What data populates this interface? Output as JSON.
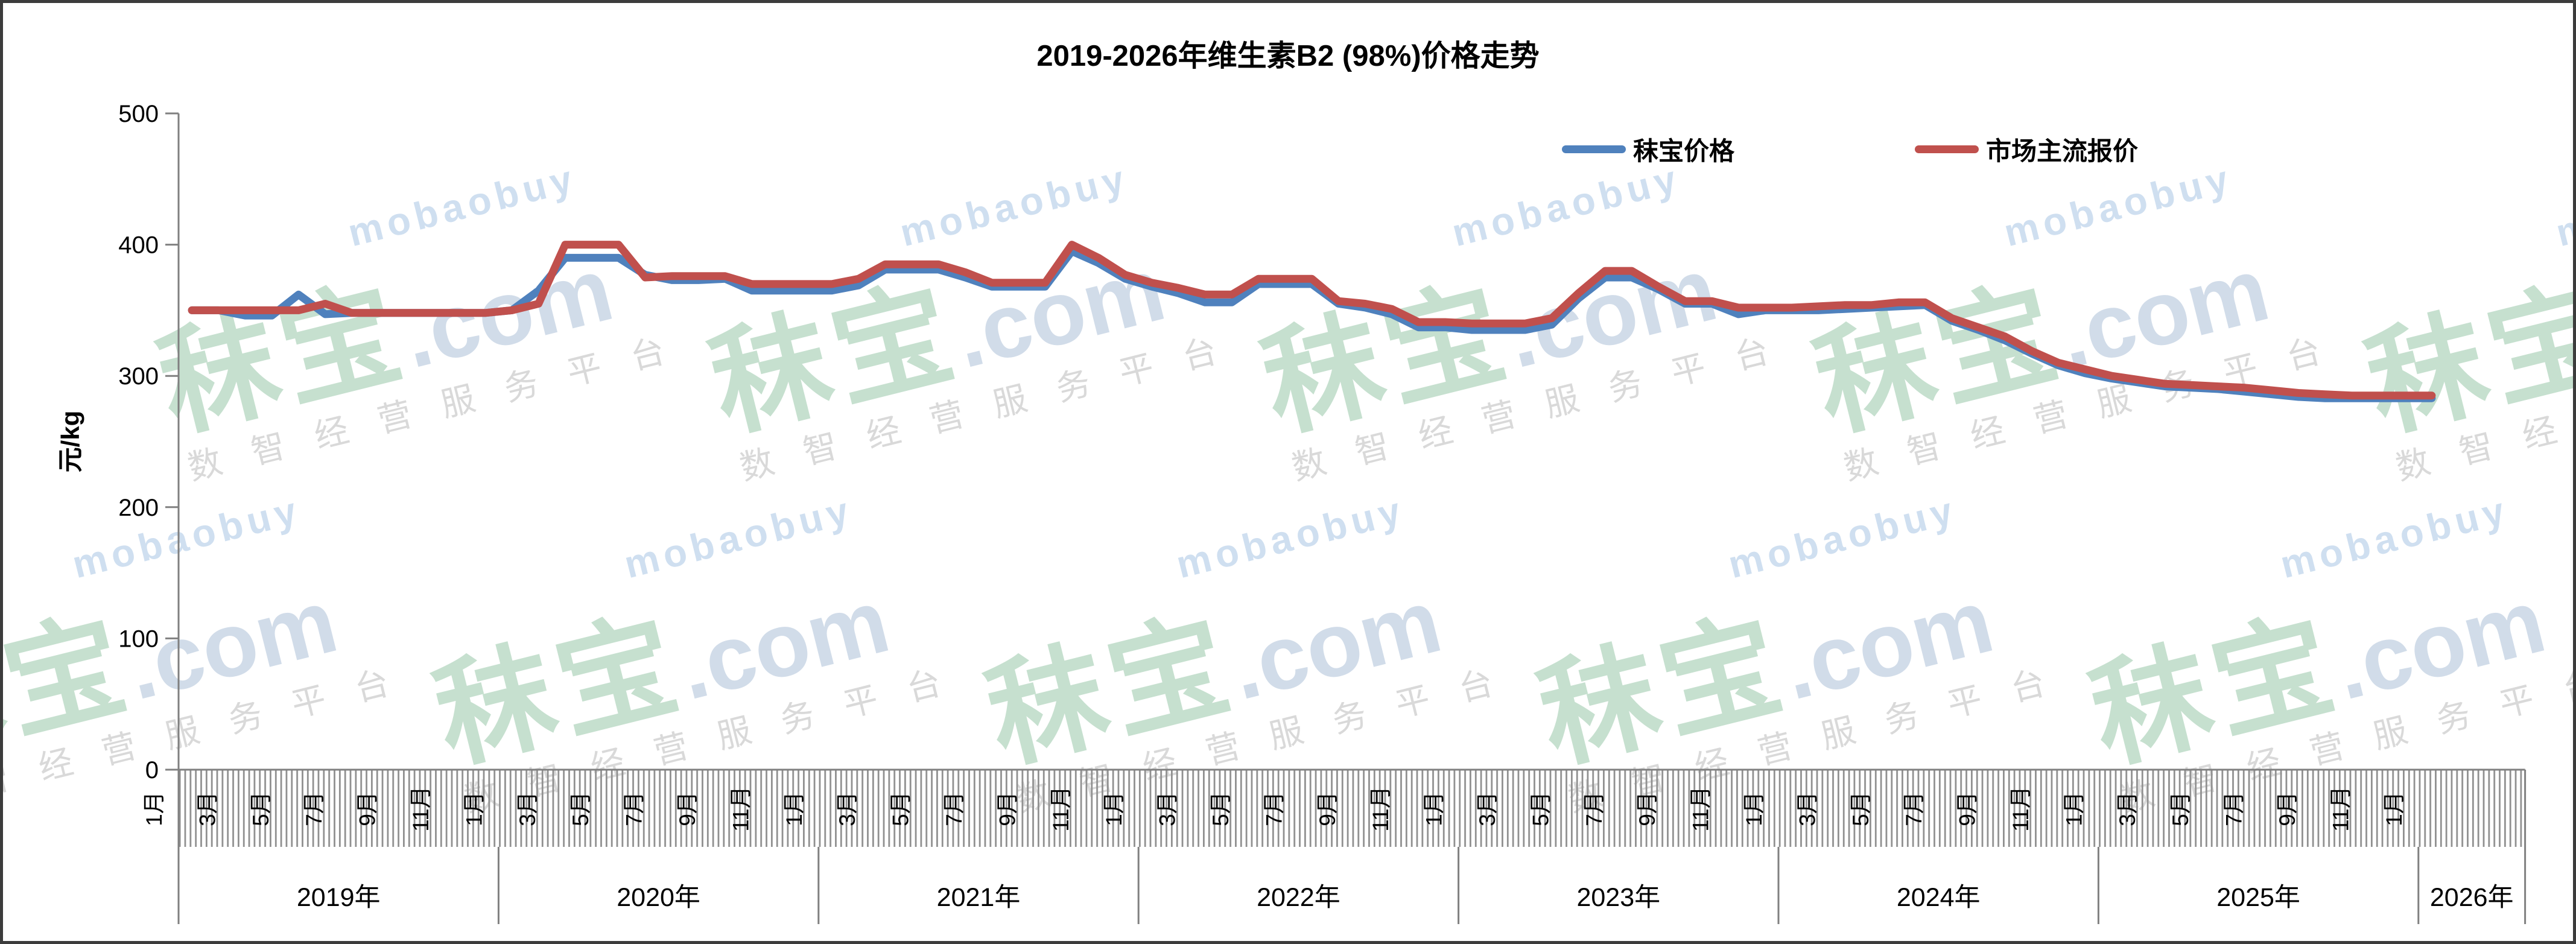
{
  "title": "2019-2026年维生素B2 (98%)价格走势",
  "y_axis": {
    "label": "元/kg",
    "ticks": [
      0,
      100,
      200,
      300,
      400,
      500
    ],
    "min": 0,
    "max": 500
  },
  "x_axis": {
    "years": [
      {
        "label": "2019年",
        "n_months": 12,
        "month_labels": [
          "1月",
          "3月",
          "5月",
          "7月",
          "9月",
          "11月"
        ]
      },
      {
        "label": "2020年",
        "n_months": 12,
        "month_labels": [
          "1月",
          "3月",
          "5月",
          "7月",
          "9月",
          "11月"
        ]
      },
      {
        "label": "2021年",
        "n_months": 12,
        "month_labels": [
          "1月",
          "3月",
          "5月",
          "7月",
          "9月",
          "11月"
        ]
      },
      {
        "label": "2022年",
        "n_months": 12,
        "month_labels": [
          "1月",
          "3月",
          "5月",
          "7月",
          "9月",
          "11月"
        ]
      },
      {
        "label": "2023年",
        "n_months": 12,
        "month_labels": [
          "1月",
          "3月",
          "5月",
          "7月",
          "9月",
          "11月"
        ]
      },
      {
        "label": "2024年",
        "n_months": 12,
        "month_labels": [
          "1月",
          "3月",
          "5月",
          "7月",
          "9月",
          "11月"
        ]
      },
      {
        "label": "2025年",
        "n_months": 12,
        "month_labels": [
          "1月",
          "3月",
          "5月",
          "7月",
          "9月",
          "11月"
        ]
      },
      {
        "label": "2026年",
        "n_months": 4,
        "month_labels": [
          "1月"
        ]
      }
    ]
  },
  "legend": {
    "items": [
      {
        "label": "秣宝价格",
        "color": "#4F81BD"
      },
      {
        "label": "市场主流报价",
        "color": "#C0504D"
      }
    ]
  },
  "watermark": {
    "brand": "秣宝",
    "suffix": ".com",
    "romanized": "mobaobuy",
    "tagline": "数智经营服务平台",
    "brand_color": "#98c6a8",
    "suffix_color": "#a3b9d4",
    "tagline_color": "#b9b9b9"
  },
  "colors": {
    "blue_series": "#4F81BD",
    "red_series": "#C0504D",
    "axis": "#808080",
    "stripe": "#909090",
    "text": "#000000"
  },
  "chart_data": {
    "type": "line",
    "title": "2019-2026年维生素B2 (98%)价格走势",
    "xlabel": "",
    "ylabel": "元/kg",
    "ylim": [
      0,
      500
    ],
    "grid": false,
    "legend_position": "top-right",
    "frequency": "monthly",
    "x_start": "2019-01",
    "x_end": "2026-01",
    "categories": [
      "2019-01",
      "2019-02",
      "2019-03",
      "2019-04",
      "2019-05",
      "2019-06",
      "2019-07",
      "2019-08",
      "2019-09",
      "2019-10",
      "2019-11",
      "2019-12",
      "2020-01",
      "2020-02",
      "2020-03",
      "2020-04",
      "2020-05",
      "2020-06",
      "2020-07",
      "2020-08",
      "2020-09",
      "2020-10",
      "2020-11",
      "2020-12",
      "2021-01",
      "2021-02",
      "2021-03",
      "2021-04",
      "2021-05",
      "2021-06",
      "2021-07",
      "2021-08",
      "2021-09",
      "2021-10",
      "2021-11",
      "2021-12",
      "2022-01",
      "2022-02",
      "2022-03",
      "2022-04",
      "2022-05",
      "2022-06",
      "2022-07",
      "2022-08",
      "2022-09",
      "2022-10",
      "2022-11",
      "2022-12",
      "2023-01",
      "2023-02",
      "2023-03",
      "2023-04",
      "2023-05",
      "2023-06",
      "2023-07",
      "2023-08",
      "2023-09",
      "2023-10",
      "2023-11",
      "2023-12",
      "2024-01",
      "2024-02",
      "2024-03",
      "2024-04",
      "2024-05",
      "2024-06",
      "2024-07",
      "2024-08",
      "2024-09",
      "2024-10",
      "2024-11",
      "2024-12",
      "2025-01",
      "2025-02",
      "2025-03",
      "2025-04",
      "2025-05",
      "2025-06",
      "2025-07",
      "2025-08",
      "2025-09",
      "2025-10",
      "2025-11",
      "2025-12",
      "2026-01"
    ],
    "series": [
      {
        "name": "秣宝价格",
        "color": "#4F81BD",
        "values": [
          350,
          350,
          346,
          346,
          362,
          347,
          348,
          348,
          348,
          348,
          348,
          348,
          350,
          365,
          390,
          390,
          390,
          377,
          373,
          373,
          374,
          365,
          365,
          365,
          365,
          369,
          381,
          381,
          381,
          375,
          368,
          368,
          368,
          395,
          386,
          374,
          368,
          363,
          356,
          356,
          370,
          370,
          370,
          355,
          352,
          347,
          337,
          337,
          335,
          335,
          335,
          339,
          359,
          375,
          375,
          366,
          355,
          355,
          347,
          350,
          350,
          350,
          351,
          352,
          353,
          354,
          342,
          335,
          327,
          317,
          308,
          302,
          298,
          295,
          292,
          291,
          290,
          288,
          286,
          284,
          283,
          283,
          283,
          283,
          283
        ]
      },
      {
        "name": "市场主流报价",
        "color": "#C0504D",
        "values": [
          350,
          350,
          350,
          350,
          350,
          355,
          348,
          348,
          348,
          348,
          348,
          348,
          350,
          355,
          400,
          400,
          400,
          375,
          376,
          376,
          376,
          370,
          370,
          370,
          370,
          374,
          385,
          385,
          385,
          379,
          371,
          371,
          371,
          400,
          390,
          377,
          371,
          367,
          362,
          362,
          374,
          374,
          374,
          357,
          355,
          351,
          341,
          341,
          340,
          340,
          340,
          344,
          363,
          380,
          380,
          368,
          357,
          357,
          352,
          352,
          352,
          353,
          354,
          354,
          356,
          356,
          344,
          337,
          330,
          319,
          310,
          305,
          300,
          297,
          294,
          293,
          292,
          291,
          289,
          287,
          286,
          285,
          285,
          285,
          285
        ]
      }
    ]
  }
}
